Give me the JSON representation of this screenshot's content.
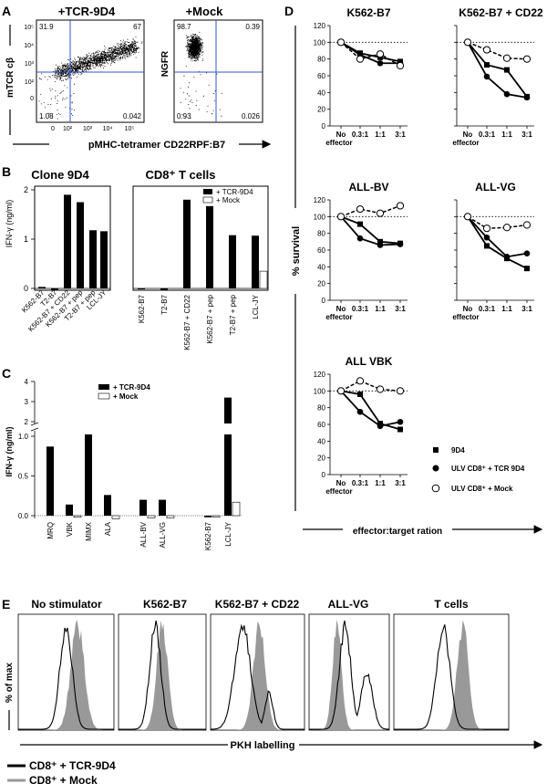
{
  "panel_labels": {
    "A": "A",
    "B": "B",
    "C": "C",
    "D": "D",
    "E": "E"
  },
  "panel_A": {
    "plots": [
      {
        "title": "+TCR-9D4",
        "ylabel": "mTCR cβ",
        "quadrants": {
          "ul": "31.9",
          "ur": "67",
          "ll": "1.08",
          "lr": "0.042"
        }
      },
      {
        "title": "+Mock",
        "ylabel": "NGFR",
        "quadrants": {
          "ul": "98.7",
          "ur": "0.39",
          "ll": "0.93",
          "lr": "0.026"
        }
      }
    ],
    "y_ticks": [
      "10⁵",
      "10⁴",
      "10³",
      "10²",
      "0"
    ],
    "x_ticks": [
      "0",
      "10²",
      "10³",
      "10⁴",
      "10⁵"
    ],
    "xlabel": "pMHC-tetramer CD22RPF:B7"
  },
  "chart_data": [
    {
      "id": "B-left",
      "type": "bar",
      "title": "Clone 9D4",
      "ylabel": "IFN-γ (ng/ml)",
      "ylim": [
        0,
        2.1
      ],
      "yticks": [
        0,
        1,
        2
      ],
      "categories": [
        "K562-B7",
        "T2-B7",
        "K562-B7 + CD22",
        "K562-B7 + pep",
        "T2-B7 + pep",
        "LCL-JY"
      ],
      "values": [
        0.03,
        -0.03,
        1.9,
        1.75,
        1.18,
        1.16
      ]
    },
    {
      "id": "B-right",
      "type": "bar",
      "title": "CD8⁺ T cells",
      "ylim": [
        0,
        2.1
      ],
      "categories": [
        "K562-B7",
        "T2-B7",
        "K562-B7 + CD22",
        "K562-B7 + pep",
        "T2-B7 + pep",
        "LCL-JY"
      ],
      "series": [
        {
          "name": "+ TCR-9D4",
          "values": [
            0.0,
            -0.03,
            1.8,
            1.67,
            1.08,
            1.07
          ]
        },
        {
          "name": "+ Mock",
          "values": [
            0.0,
            0.0,
            0.0,
            0.0,
            0.0,
            0.35
          ]
        }
      ]
    },
    {
      "id": "C",
      "type": "bar",
      "ylabel": "IFN-γ (ng/ml)",
      "ylim": [
        0,
        4
      ],
      "yticks_low": [
        0.0,
        0.5,
        1.0
      ],
      "yticks_high": [
        2,
        3,
        4
      ],
      "categories": [
        "MRQ",
        "VBK",
        "MIMX",
        "ALA",
        "ALL-BV",
        "ALL-VG",
        "K562-B7",
        "LCL-JY"
      ],
      "series": [
        {
          "name": "+ TCR-9D4",
          "values": [
            0.87,
            0.14,
            1.1,
            0.26,
            0.2,
            0.2,
            -0.02,
            3.2
          ]
        },
        {
          "name": "+ Mock",
          "values": [
            0.0,
            -0.02,
            0.0,
            -0.04,
            -0.03,
            -0.03,
            -0.02,
            0.17
          ]
        }
      ]
    },
    {
      "id": "D",
      "type": "line",
      "ylabel": "% survival",
      "xlabel": "effector:target ration",
      "x": [
        "No effector",
        "0.3:1",
        "1:1",
        "3:1"
      ],
      "ylim": [
        0,
        120
      ],
      "yticks": [
        0,
        20,
        40,
        60,
        80,
        100,
        120
      ],
      "legend": [
        "9D4",
        "ULV CD8⁺ + TCR 9D4",
        "ULV CD8⁺ + Mock"
      ],
      "subplots": [
        {
          "title": "K562-B7",
          "series": [
            {
              "name": "9D4",
              "values": [
                100,
                87,
                82,
                77
              ]
            },
            {
              "name": "ULV CD8⁺ + TCR 9D4",
              "values": [
                100,
                85,
                75,
                75
              ]
            },
            {
              "name": "ULV CD8⁺ + Mock",
              "values": [
                100,
                80,
                86,
                72
              ]
            }
          ]
        },
        {
          "title": "K562-B7 + CD22",
          "series": [
            {
              "name": "9D4",
              "values": [
                100,
                73,
                67,
                35
              ]
            },
            {
              "name": "ULV CD8⁺ + TCR 9D4",
              "values": [
                100,
                59,
                38,
                34
              ]
            },
            {
              "name": "ULV CD8⁺ + Mock",
              "values": [
                100,
                91,
                81,
                80
              ]
            }
          ]
        },
        {
          "title": "ALL-BV",
          "series": [
            {
              "name": "9D4",
              "values": [
                100,
                91,
                70,
                68
              ]
            },
            {
              "name": "ULV CD8⁺ + TCR 9D4",
              "values": [
                100,
                74,
                66,
                67
              ]
            },
            {
              "name": "ULV CD8⁺ + Mock",
              "values": [
                100,
                109,
                104,
                113
              ]
            }
          ]
        },
        {
          "title": "ALL-VG",
          "series": [
            {
              "name": "9D4",
              "values": [
                100,
                65,
                50,
                38
              ]
            },
            {
              "name": "ULV CD8⁺ + TCR 9D4",
              "values": [
                100,
                75,
                52,
                56
              ]
            },
            {
              "name": "ULV CD8⁺ + Mock",
              "values": [
                100,
                86,
                87,
                90
              ]
            }
          ]
        },
        {
          "title": "ALL VBK",
          "series": [
            {
              "name": "9D4",
              "values": [
                100,
                96,
                61,
                54
              ]
            },
            {
              "name": "ULV CD8⁺ + TCR 9D4",
              "values": [
                100,
                75,
                58,
                63
              ]
            },
            {
              "name": "ULV CD8⁺ + Mock",
              "values": [
                100,
                112,
                102,
                100
              ]
            }
          ]
        }
      ]
    }
  ],
  "panel_E": {
    "titles": [
      "No stimulator",
      "K562-B7",
      "K562-B7 + CD22",
      "ALL-VG",
      "T cells"
    ],
    "ylabel": "% of max",
    "xlabel": "PKH labelling",
    "legend": [
      "CD8⁺ + TCR-9D4",
      "CD8⁺ + Mock"
    ],
    "colors": {
      "tcr": "#000000",
      "mock": "#999999"
    }
  }
}
